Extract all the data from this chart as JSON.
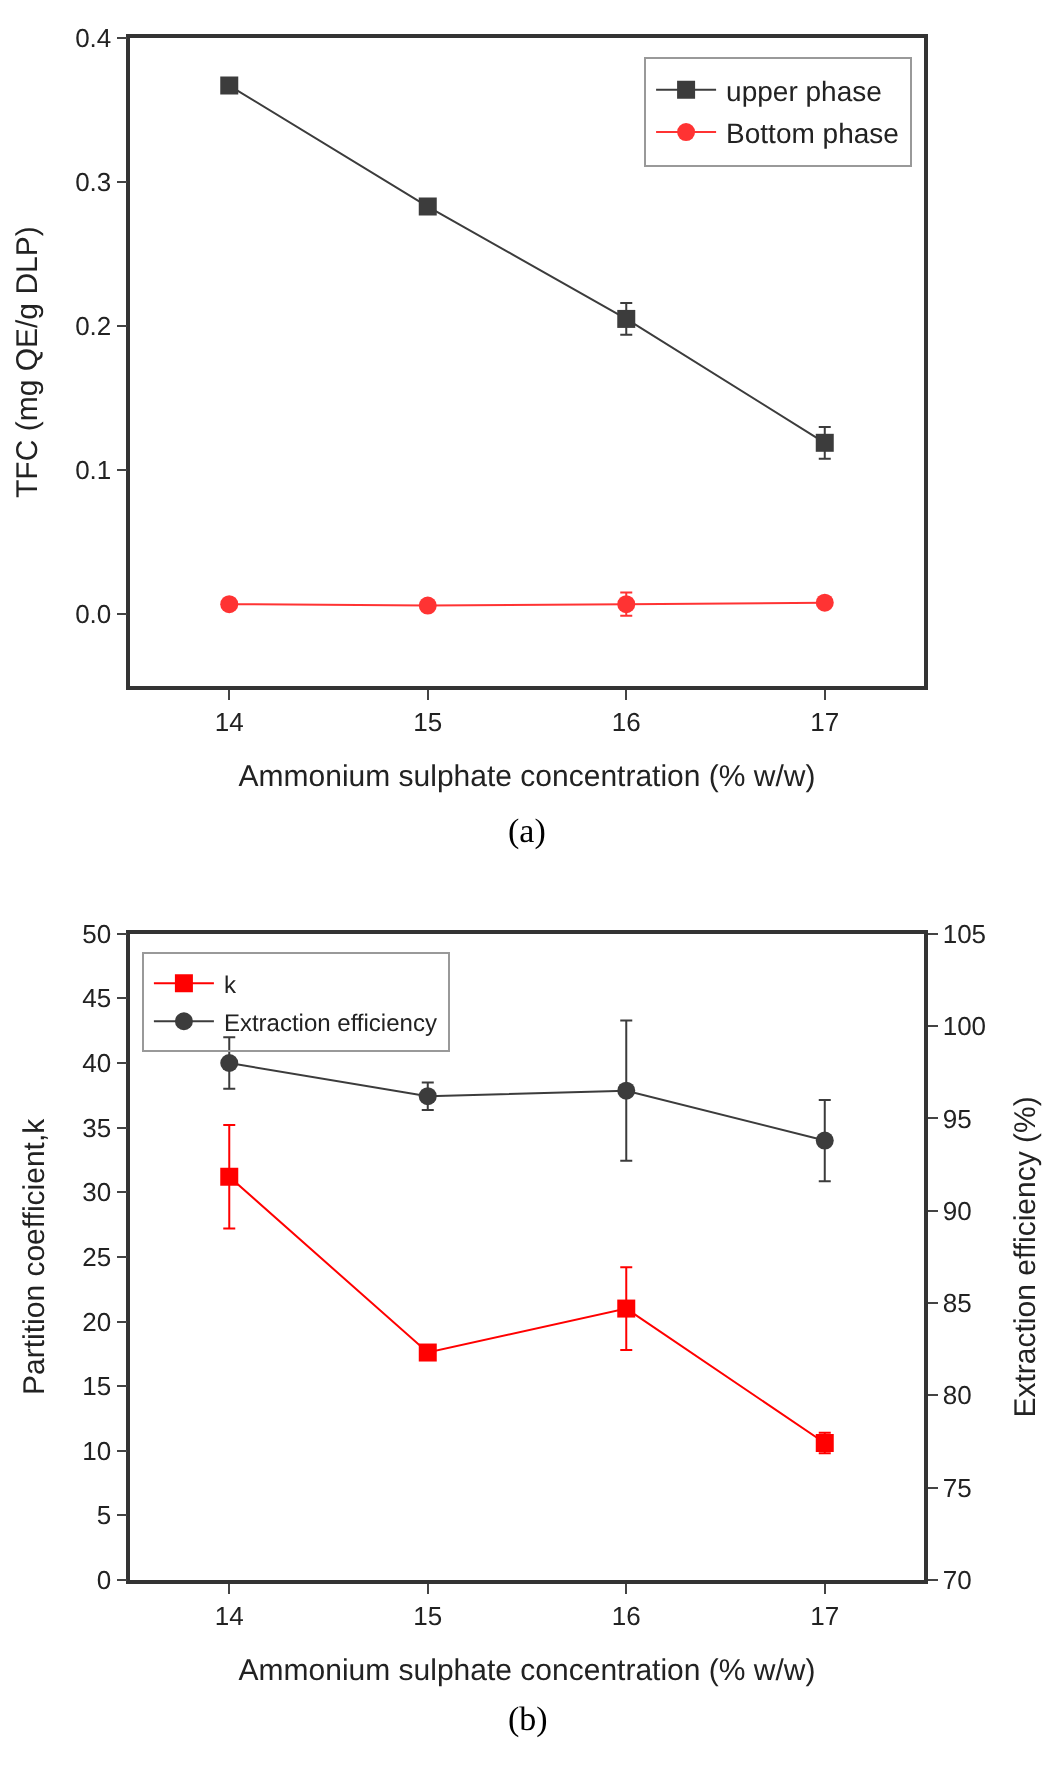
{
  "chart_data": [
    {
      "type": "line",
      "xlabel": "Ammonium sulphate concentration (% w/w)",
      "ylabel": "TFC (mg QE/g DLP)",
      "x": [
        14,
        15,
        16,
        17
      ],
      "xlim": [
        13.5,
        17.5
      ],
      "xticks": [
        14,
        15,
        16,
        17
      ],
      "ylim": [
        -0.05,
        0.4
      ],
      "yticks": [
        {
          "value": 0,
          "label": "0.0"
        },
        {
          "value": 0.1,
          "label": "0.1"
        },
        {
          "value": 0.2,
          "label": "0.2"
        },
        {
          "value": 0.3,
          "label": "0.3"
        },
        {
          "value": 0.4,
          "label": "0.4"
        }
      ],
      "legend": "top right",
      "annotations": [
        "(a)"
      ],
      "series": [
        {
          "name": "upper phase",
          "color": "#3c3c3c",
          "marker": "square",
          "values": [
            0.367,
            0.283,
            0.205,
            0.119
          ],
          "errors": [
            null,
            null,
            0.011,
            0.011
          ]
        },
        {
          "name": "Bottom phase",
          "color": "#ff3333",
          "marker": "circle",
          "values": [
            0.007,
            0.006,
            0.007,
            0.008
          ],
          "errors": [
            null,
            null,
            0.008,
            null
          ]
        }
      ]
    },
    {
      "type": "line",
      "xlabel": "Ammonium sulphate concentration (% w/w)",
      "ylabel": "Partition coefficient,k",
      "y2label": "Extraction efficiency (%)",
      "x": [
        14,
        15,
        16,
        17
      ],
      "xlim": [
        13.5,
        17.5
      ],
      "xticks": [
        14,
        15,
        16,
        17
      ],
      "ylim": [
        0,
        50
      ],
      "yticks": [
        0,
        5,
        10,
        15,
        20,
        25,
        30,
        35,
        40,
        45,
        50
      ],
      "y2lim": [
        70,
        105
      ],
      "y2ticks": [
        70,
        75,
        80,
        85,
        90,
        95,
        100,
        105
      ],
      "legend": "top left",
      "annotations": [
        "(b)"
      ],
      "series": [
        {
          "name": "k",
          "color": "#ff0000",
          "marker": "square",
          "values": [
            31.2,
            17.6,
            21.0,
            10.6
          ],
          "errors": [
            4.0,
            null,
            3.2,
            0.8
          ]
        },
        {
          "name": "Extraction efficiency",
          "color": "#3c3c3c",
          "marker": "circle",
          "axis": "y2",
          "values": [
            98.0,
            96.2,
            96.5,
            93.8
          ],
          "errors": [
            1.4,
            0.75,
            3.8,
            2.2
          ]
        }
      ]
    }
  ]
}
